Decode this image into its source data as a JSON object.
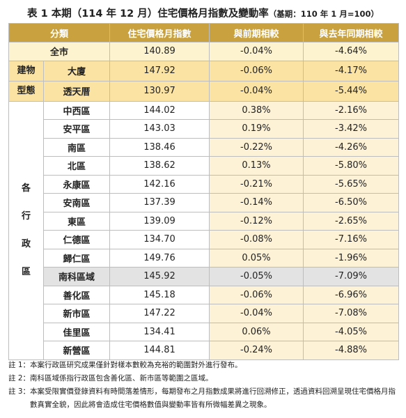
{
  "title": "表 1 本期（114 年 12 月）住宅價格月指數及變動率",
  "title_note": "（基期：110 年 1 月=100）",
  "table": {
    "headers": [
      "分類",
      "住宅價格月指數",
      "與前期相較",
      "與去年同期相較"
    ],
    "total": [
      "全市",
      "140.89",
      "-0.04%",
      "-4.64%"
    ],
    "groups": [
      {
        "label": [
          "建物",
          "型態"
        ],
        "label_style": "stacked",
        "rows": [
          [
            "大廈",
            "147.92",
            "-0.06%",
            "-4.17%"
          ],
          [
            "透天厝",
            "130.97",
            "-0.04%",
            "-5.44%"
          ]
        ]
      },
      {
        "label": [
          "各",
          "行",
          "政",
          "區"
        ],
        "label_style": "spaced",
        "highlight_row": 9,
        "rows": [
          [
            "中西區",
            "144.02",
            "0.38%",
            "-2.16%"
          ],
          [
            "安平區",
            "143.03",
            "0.19%",
            "-3.42%"
          ],
          [
            "南區",
            "138.46",
            "-0.22%",
            "-4.26%"
          ],
          [
            "北區",
            "138.62",
            "0.13%",
            "-5.80%"
          ],
          [
            "永康區",
            "142.16",
            "-0.21%",
            "-5.65%"
          ],
          [
            "安南區",
            "137.39",
            "-0.14%",
            "-6.50%"
          ],
          [
            "東區",
            "139.09",
            "-0.12%",
            "-2.65%"
          ],
          [
            "仁德區",
            "134.70",
            "-0.08%",
            "-7.16%"
          ],
          [
            "歸仁區",
            "149.76",
            "0.05%",
            "-1.96%"
          ],
          [
            "南科區域",
            "145.92",
            "-0.05%",
            "-7.09%"
          ],
          [
            "善化區",
            "145.18",
            "-0.06%",
            "-6.96%"
          ],
          [
            "新市區",
            "147.22",
            "-0.04%",
            "-7.08%"
          ],
          [
            "佳里區",
            "134.41",
            "0.06%",
            "-4.05%"
          ],
          [
            "新營區",
            "144.81",
            "-0.24%",
            "-4.88%"
          ]
        ]
      }
    ]
  },
  "notes": [
    {
      "label": "註 1：",
      "text": "本案行政區研究成果僅針對樣本數較為充裕的範圍對外進行發布。"
    },
    {
      "label": "註 2：",
      "text": "南科區域係指行政區包含善化區、新市區等範圍之區域。"
    },
    {
      "label": "註 3：",
      "text": "本案受限實價登錄資料有時間落差情形，每期發布之月指數成果將進行回溯修正，透過資料回溯呈現住宅價格月指數真實全貌，因此將會造成住宅價格數值與變動率皆有所微幅差異之現象。"
    }
  ]
}
